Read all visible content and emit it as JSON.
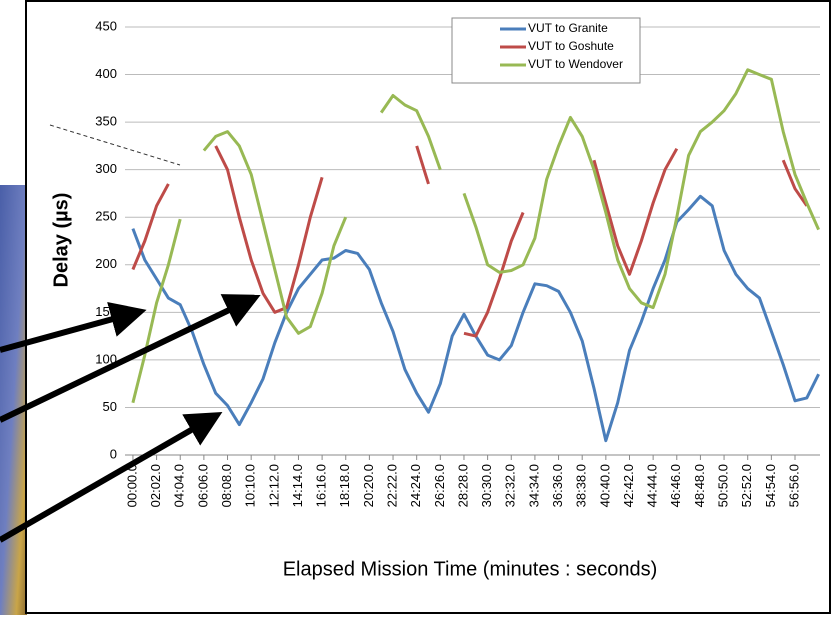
{
  "chart_data": {
    "type": "line",
    "y_label": "Delay (µs)",
    "x_label": "Elapsed Mission Time (minutes : seconds)",
    "x": [
      0,
      61,
      122,
      183,
      244,
      305,
      366,
      427,
      488,
      549,
      610,
      671,
      732,
      793,
      854,
      915,
      976,
      1037,
      1098,
      1159,
      1220,
      1281,
      1342,
      1403,
      1464,
      1525,
      1586,
      1647,
      1708,
      1769,
      1830,
      1891,
      1952,
      2013,
      2074,
      2135,
      2196,
      2257,
      2318,
      2379,
      2440,
      2501,
      2562,
      2623,
      2684,
      2745,
      2806,
      2867,
      2928,
      2989,
      3050,
      3111,
      3172,
      3233,
      3294,
      3355,
      3416,
      3477,
      3538
    ],
    "xlim": [
      -41,
      3545
    ],
    "xticks": [
      {
        "value": 0,
        "label": "00:00.0"
      },
      {
        "value": 122,
        "label": "02:02.0"
      },
      {
        "value": 244,
        "label": "04:04.0"
      },
      {
        "value": 366,
        "label": "06:06.0"
      },
      {
        "value": 488,
        "label": "08:08.0"
      },
      {
        "value": 610,
        "label": "10:10.0"
      },
      {
        "value": 732,
        "label": "12:12.0"
      },
      {
        "value": 854,
        "label": "14:14.0"
      },
      {
        "value": 976,
        "label": "16:16.0"
      },
      {
        "value": 1098,
        "label": "18:18.0"
      },
      {
        "value": 1220,
        "label": "20:20.0"
      },
      {
        "value": 1342,
        "label": "22:22.0"
      },
      {
        "value": 1464,
        "label": "24:24.0"
      },
      {
        "value": 1586,
        "label": "26:26.0"
      },
      {
        "value": 1708,
        "label": "28:28.0"
      },
      {
        "value": 1830,
        "label": "30:30.0"
      },
      {
        "value": 1952,
        "label": "32:32.0"
      },
      {
        "value": 2074,
        "label": "34:34.0"
      },
      {
        "value": 2196,
        "label": "36:36.0"
      },
      {
        "value": 2318,
        "label": "38:38.0"
      },
      {
        "value": 2440,
        "label": "40:40.0"
      },
      {
        "value": 2562,
        "label": "42:42.0"
      },
      {
        "value": 2684,
        "label": "44:44.0"
      },
      {
        "value": 2806,
        "label": "46:46.0"
      },
      {
        "value": 2928,
        "label": "48:48.0"
      },
      {
        "value": 3050,
        "label": "50:50.0"
      },
      {
        "value": 3172,
        "label": "52:52.0"
      },
      {
        "value": 3294,
        "label": "54:54.0"
      },
      {
        "value": 3416,
        "label": "56:56.0"
      }
    ],
    "ylim": [
      0,
      450
    ],
    "yticks": [
      0,
      50,
      100,
      150,
      200,
      250,
      300,
      350,
      400,
      450
    ],
    "grid": true,
    "series": [
      {
        "name": "VUT to Granite",
        "color": "#4a7ebb",
        "values": [
          238,
          205,
          185,
          165,
          158,
          130,
          95,
          65,
          52,
          32,
          55,
          80,
          118,
          150,
          175,
          190,
          205,
          207,
          215,
          212,
          195,
          160,
          130,
          90,
          65,
          45,
          75,
          125,
          148,
          125,
          105,
          100,
          115,
          150,
          180,
          178,
          172,
          150,
          120,
          70,
          15,
          55,
          110,
          140,
          175,
          205,
          245,
          258,
          272,
          262,
          215,
          190,
          175,
          165,
          130,
          95,
          57,
          60,
          85
        ]
      },
      {
        "name": "VUT to Goshute",
        "color": "#be4b48",
        "values": [
          195,
          225,
          262,
          285,
          null,
          null,
          null,
          325,
          300,
          250,
          205,
          170,
          150,
          155,
          200,
          250,
          292,
          null,
          null,
          null,
          null,
          null,
          null,
          null,
          325,
          285,
          null,
          null,
          128,
          125,
          150,
          185,
          225,
          255,
          null,
          null,
          null,
          null,
          null,
          310,
          265,
          220,
          190,
          225,
          265,
          300,
          322,
          null,
          null,
          null,
          null,
          null,
          null,
          null,
          null,
          310,
          280,
          262,
          null
        ]
      },
      {
        "name": "VUT to Wendover",
        "color": "#98b954",
        "values": [
          55,
          105,
          160,
          200,
          248,
          null,
          320,
          335,
          340,
          325,
          295,
          245,
          195,
          145,
          128,
          135,
          170,
          220,
          250,
          null,
          null,
          360,
          378,
          368,
          362,
          335,
          300,
          null,
          275,
          240,
          200,
          192,
          194,
          200,
          228,
          290,
          325,
          355,
          335,
          300,
          255,
          205,
          175,
          160,
          155,
          190,
          250,
          315,
          340,
          350,
          362,
          380,
          405,
          400,
          395,
          340,
          295,
          265,
          237
        ]
      }
    ]
  }
}
